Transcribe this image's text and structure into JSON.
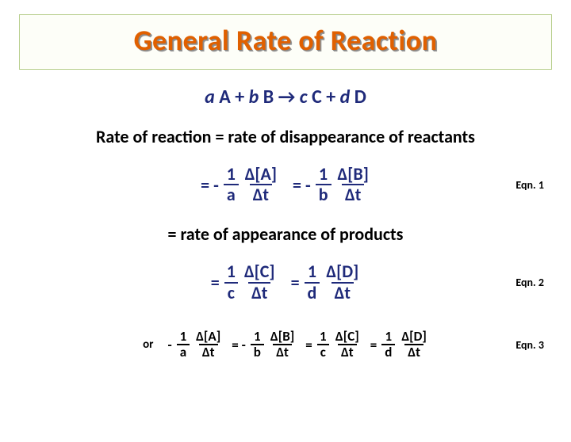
{
  "title": "General Rate of Reaction",
  "reaction": {
    "a": "a",
    "A": "A",
    "plus1": "+",
    "b": "b",
    "B": "B",
    "arrow": "→",
    "c": "c",
    "C": "C",
    "plus2": "+",
    "d": "d",
    "D": "D"
  },
  "statement1": "Rate of reaction = rate of disappearance of reactants",
  "statement2": "= rate of appearance of products",
  "eq": "=",
  "minus": "-",
  "eqminus": "= -",
  "frac": {
    "one": "1",
    "a": "a",
    "b": "b",
    "c": "c",
    "d": "d",
    "dA": "Δ[A]",
    "dB": "Δ[B]",
    "dC": "Δ[C]",
    "dD": "Δ[D]",
    "dt": "Δt"
  },
  "labels": {
    "eqn1": "Eqn. 1",
    "eqn2": "Eqn. 2",
    "eqn3": "Eqn. 3",
    "or": "or"
  },
  "colors": {
    "title": "#e06000",
    "equation": "#1f2a7a",
    "title_border": "#b8cf8e",
    "title_bg": "#fdfef8",
    "text": "#000000",
    "background": "#ffffff"
  }
}
